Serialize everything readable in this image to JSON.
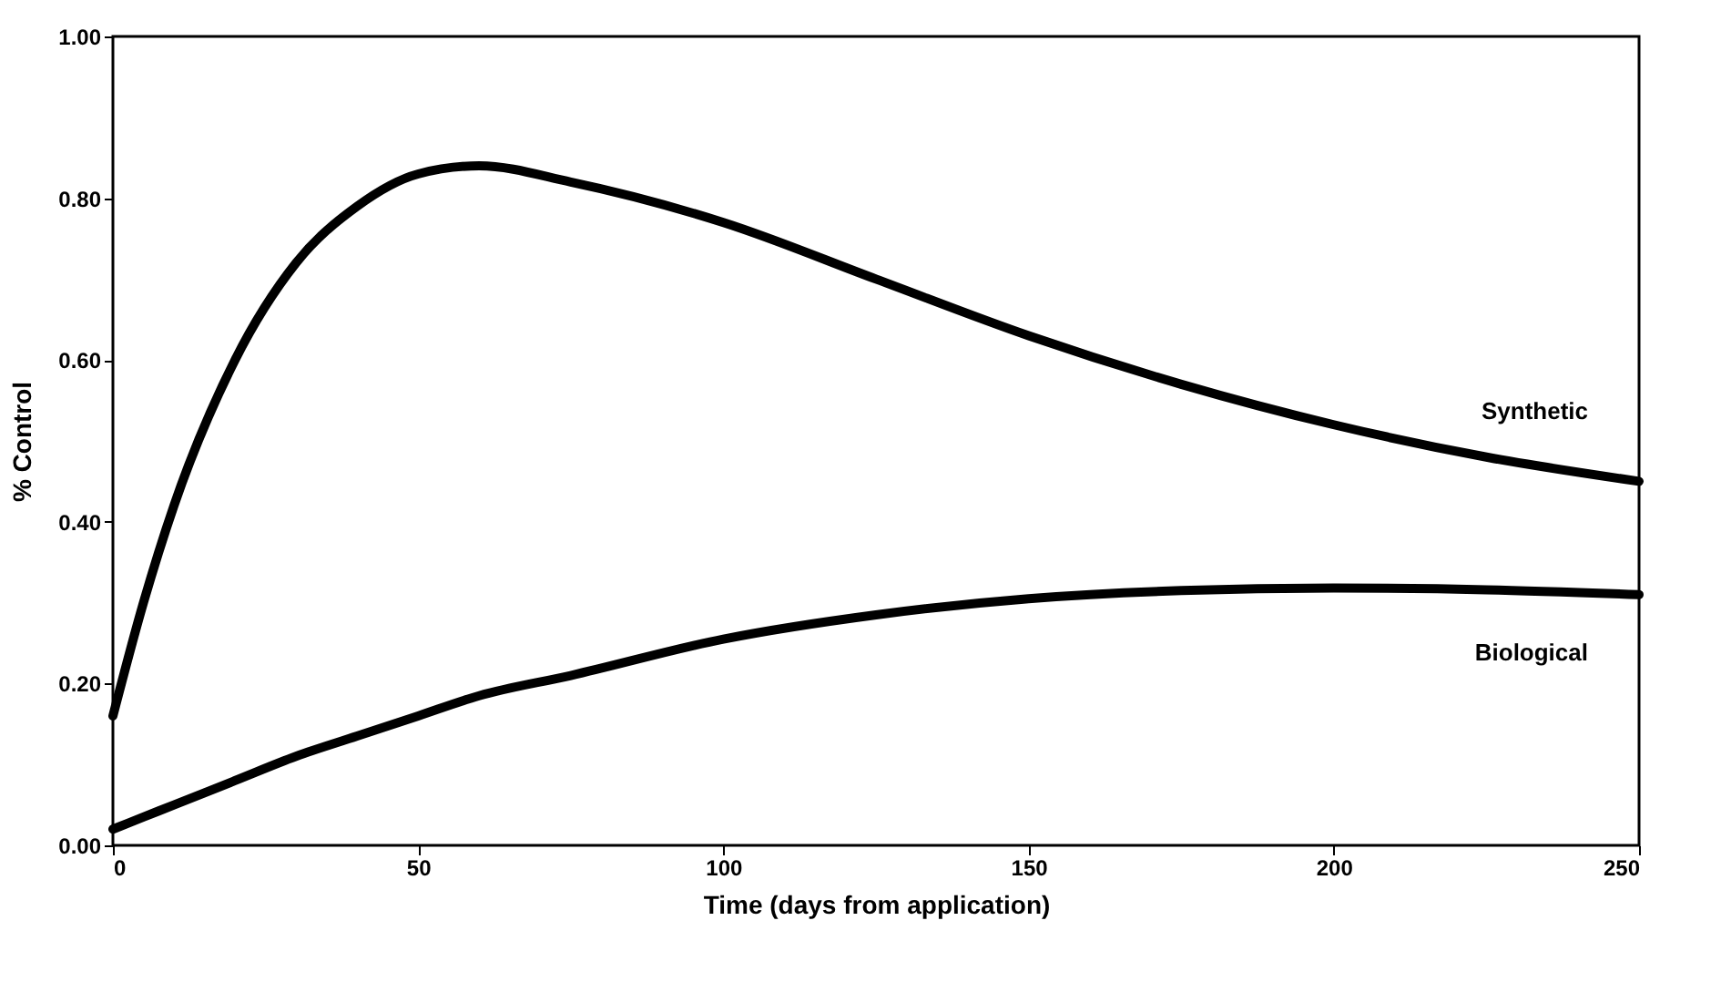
{
  "chart_data": {
    "type": "line",
    "xlabel": "Time (days from application)",
    "ylabel": "% Control",
    "x": [
      0,
      5,
      10,
      20,
      30,
      40,
      50,
      60,
      75,
      100,
      125,
      150,
      175,
      200,
      225,
      250
    ],
    "series": [
      {
        "name": "Synthetic",
        "color": "#000000",
        "values": [
          0.16,
          0.3,
          0.42,
          0.6,
          0.72,
          0.79,
          0.83,
          0.84,
          0.82,
          0.77,
          0.7,
          0.63,
          0.57,
          0.52,
          0.48,
          0.45
        ]
      },
      {
        "name": "Biological",
        "color": "#000000",
        "values": [
          0.02,
          0.035,
          0.05,
          0.08,
          0.11,
          0.135,
          0.16,
          0.185,
          0.21,
          0.255,
          0.285,
          0.305,
          0.315,
          0.318,
          0.316,
          0.31
        ]
      }
    ],
    "xlim": [
      0,
      250
    ],
    "xticks": [
      0,
      50,
      100,
      150,
      200,
      250
    ],
    "ylim": [
      0,
      1
    ],
    "yticks": [
      {
        "value": 0,
        "label": "0.00"
      },
      {
        "value": 0.2,
        "label": "0.20"
      },
      {
        "value": 0.4,
        "label": "0.40"
      },
      {
        "value": 0.6,
        "label": "0.60"
      },
      {
        "value": 0.8,
        "label": "0.80"
      },
      {
        "value": 1,
        "label": "1.00"
      }
    ],
    "grid": false,
    "marker": "none",
    "line_style": "solid"
  }
}
